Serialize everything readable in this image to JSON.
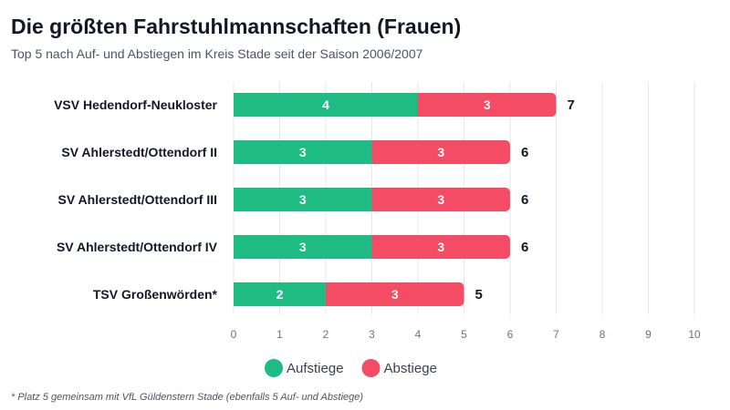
{
  "chart_data": {
    "type": "bar",
    "orientation": "horizontal",
    "stacked": true,
    "title": "Die größten Fahrstuhlmannschaften (Frauen)",
    "subtitle": "Top 5 nach Auf- und Abstiegen im Kreis Stade seit der Saison 2006/2007",
    "categories": [
      "VSV Hedendorf-Neukloster",
      "SV Ahlerstedt/Ottendorf II",
      "SV Ahlerstedt/Ottendorf III",
      "SV Ahlerstedt/Ottendorf IV",
      "TSV Großenwörden*"
    ],
    "series": [
      {
        "name": "Aufstiege",
        "values": [
          4,
          3,
          3,
          3,
          2
        ],
        "color": "#1fbb85"
      },
      {
        "name": "Abstiege",
        "values": [
          3,
          3,
          3,
          3,
          3
        ],
        "color": "#f44c64"
      }
    ],
    "totals": [
      7,
      6,
      6,
      6,
      5
    ],
    "xlim": [
      0,
      10
    ],
    "xticks": [
      0,
      1,
      2,
      3,
      4,
      5,
      6,
      7,
      8,
      9,
      10
    ],
    "grid": true,
    "legend_position": "bottom",
    "footnote": "* Platz 5 gemeinsam mit VfL Güldenstern Stade (ebenfalls 5 Auf- und Abstiege)"
  }
}
